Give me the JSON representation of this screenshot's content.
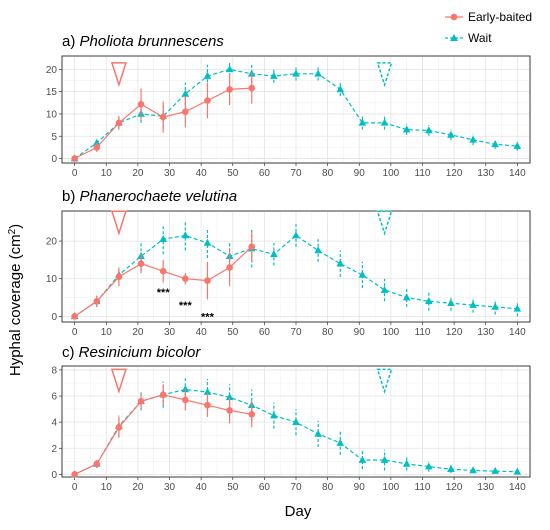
{
  "figure": {
    "ylabel": "Hyphal coverage (cm²)",
    "ylabel_main": "Hyphal coverage (cm",
    "ylabel_sup": "2",
    "ylabel_end": ")",
    "xlabel": "Day"
  },
  "legend": {
    "placement": "top-right",
    "entries": [
      {
        "name": "Early-baited",
        "color": "#f8766d",
        "marker": "circle",
        "line": "solid"
      },
      {
        "name": "Wait",
        "color": "#00bfc4",
        "marker": "triangle",
        "line": "dashed"
      }
    ]
  },
  "chart_data": [
    {
      "type": "line",
      "panel_label": "a)",
      "title": "Pholiota brunnescens",
      "xlim": [
        -4,
        144
      ],
      "ylim": [
        -1,
        23
      ],
      "xticks": [
        0,
        10,
        20,
        30,
        40,
        50,
        60,
        70,
        80,
        90,
        100,
        110,
        120,
        130,
        140
      ],
      "yticks": [
        0,
        5,
        10,
        15,
        20
      ],
      "grid": true,
      "markers": [
        {
          "type": "bait",
          "series": "Early-baited",
          "x": 14,
          "y": 19
        },
        {
          "type": "bait",
          "series": "Wait",
          "x": 98,
          "y": 19
        }
      ],
      "significance": [],
      "series": [
        {
          "name": "Wait",
          "color": "#00bfc4",
          "x": [
            0,
            7,
            14,
            21,
            28,
            35,
            42,
            49,
            56,
            63,
            70,
            77,
            84,
            91,
            98,
            105,
            112,
            119,
            126,
            133,
            140
          ],
          "y": [
            0,
            3.5,
            8,
            10,
            9.5,
            14.5,
            18.5,
            20,
            19,
            18.5,
            19,
            19,
            15.5,
            8,
            8,
            6.5,
            6.3,
            5.3,
            4.2,
            3.2,
            2.8
          ],
          "err": [
            0,
            1,
            1.5,
            2,
            2.5,
            2.5,
            2.5,
            1.5,
            2,
            1.5,
            1.5,
            1.5,
            1.5,
            1.5,
            1.5,
            1.2,
            1.2,
            1.2,
            1.2,
            1,
            1
          ]
        },
        {
          "name": "Early-baited",
          "color": "#f8766d",
          "x": [
            0,
            7,
            14,
            21,
            28,
            35,
            42,
            49,
            56
          ],
          "y": [
            0,
            2.5,
            8,
            12.2,
            9.3,
            10.5,
            13,
            15.5,
            15.8
          ],
          "err": [
            0,
            1,
            1.5,
            3.5,
            3.5,
            3.5,
            4,
            3.5,
            3.5
          ]
        }
      ]
    },
    {
      "type": "line",
      "panel_label": "b)",
      "title": "Phanerochaete velutina",
      "xlim": [
        -4,
        144
      ],
      "ylim": [
        -1.5,
        28
      ],
      "xticks": [
        0,
        10,
        20,
        30,
        40,
        50,
        60,
        70,
        80,
        90,
        100,
        110,
        120,
        130,
        140
      ],
      "yticks": [
        0,
        10,
        20
      ],
      "grid": true,
      "markers": [
        {
          "type": "bait",
          "series": "Early-baited",
          "x": 14,
          "y": 25
        },
        {
          "type": "bait",
          "series": "Wait",
          "x": 98,
          "y": 25
        }
      ],
      "significance": [
        {
          "text": "***",
          "x": 28,
          "y": 6.5
        },
        {
          "text": "***",
          "x": 35,
          "y": 3
        },
        {
          "text": "***",
          "x": 42,
          "y": 0
        }
      ],
      "series": [
        {
          "name": "Wait",
          "color": "#00bfc4",
          "x": [
            0,
            7,
            14,
            21,
            28,
            35,
            42,
            49,
            56,
            63,
            70,
            77,
            84,
            91,
            98,
            105,
            112,
            119,
            126,
            133,
            140
          ],
          "y": [
            0,
            4,
            11,
            16,
            20.5,
            21.5,
            19.5,
            16,
            18,
            16.5,
            21.5,
            17.5,
            14,
            11,
            7,
            5,
            4,
            3.5,
            3,
            2.5,
            2
          ],
          "err": [
            0,
            1.5,
            2,
            4,
            4,
            4,
            4,
            4,
            5,
            3,
            3,
            3,
            3.5,
            3.5,
            3,
            2.5,
            2.5,
            2,
            2,
            2,
            2
          ]
        },
        {
          "name": "Early-baited",
          "color": "#f8766d",
          "x": [
            0,
            7,
            14,
            21,
            28,
            35,
            42,
            49,
            56
          ],
          "y": [
            0,
            4,
            10.5,
            14,
            12,
            10,
            9.5,
            13,
            18.5
          ],
          "err": [
            0,
            1.5,
            2.5,
            2.5,
            3,
            1.5,
            5,
            5,
            4
          ]
        }
      ]
    },
    {
      "type": "line",
      "panel_label": "c)",
      "title": "Resinicium bicolor",
      "xlim": [
        -4,
        144
      ],
      "ylim": [
        -0.2,
        8.3
      ],
      "xticks": [
        0,
        10,
        20,
        30,
        40,
        50,
        60,
        70,
        80,
        90,
        100,
        110,
        120,
        130,
        140
      ],
      "yticks": [
        0,
        2,
        4,
        6,
        8
      ],
      "grid": true,
      "markers": [
        {
          "type": "bait",
          "series": "Early-baited",
          "x": 14,
          "y": 7.2
        },
        {
          "type": "bait",
          "series": "Wait",
          "x": 98,
          "y": 7.2
        }
      ],
      "significance": [],
      "series": [
        {
          "name": "Wait",
          "color": "#00bfc4",
          "x": [
            0,
            7,
            14,
            21,
            28,
            35,
            42,
            49,
            56,
            63,
            70,
            77,
            84,
            91,
            98,
            105,
            112,
            119,
            126,
            133,
            140
          ],
          "y": [
            0,
            0.8,
            3.7,
            5.6,
            6.1,
            6.5,
            6.3,
            5.9,
            5.3,
            4.5,
            4,
            3.1,
            2.4,
            1.1,
            1.1,
            0.8,
            0.6,
            0.4,
            0.3,
            0.25,
            0.2
          ],
          "err": [
            0,
            0.3,
            0.8,
            0.7,
            1,
            0.9,
            1,
            1,
            1.2,
            1,
            1,
            1,
            0.9,
            0.7,
            0.8,
            0.5,
            0.4,
            0.3,
            0.2,
            0.15,
            0.15
          ]
        },
        {
          "name": "Early-baited",
          "color": "#f8766d",
          "x": [
            0,
            7,
            14,
            21,
            28,
            35,
            42,
            49,
            56
          ],
          "y": [
            0,
            0.8,
            3.6,
            5.6,
            6.1,
            5.7,
            5.3,
            4.9,
            4.6
          ],
          "err": [
            0,
            0.3,
            0.8,
            0.6,
            0.8,
            0.8,
            0.9,
            1,
            1
          ]
        }
      ]
    }
  ]
}
